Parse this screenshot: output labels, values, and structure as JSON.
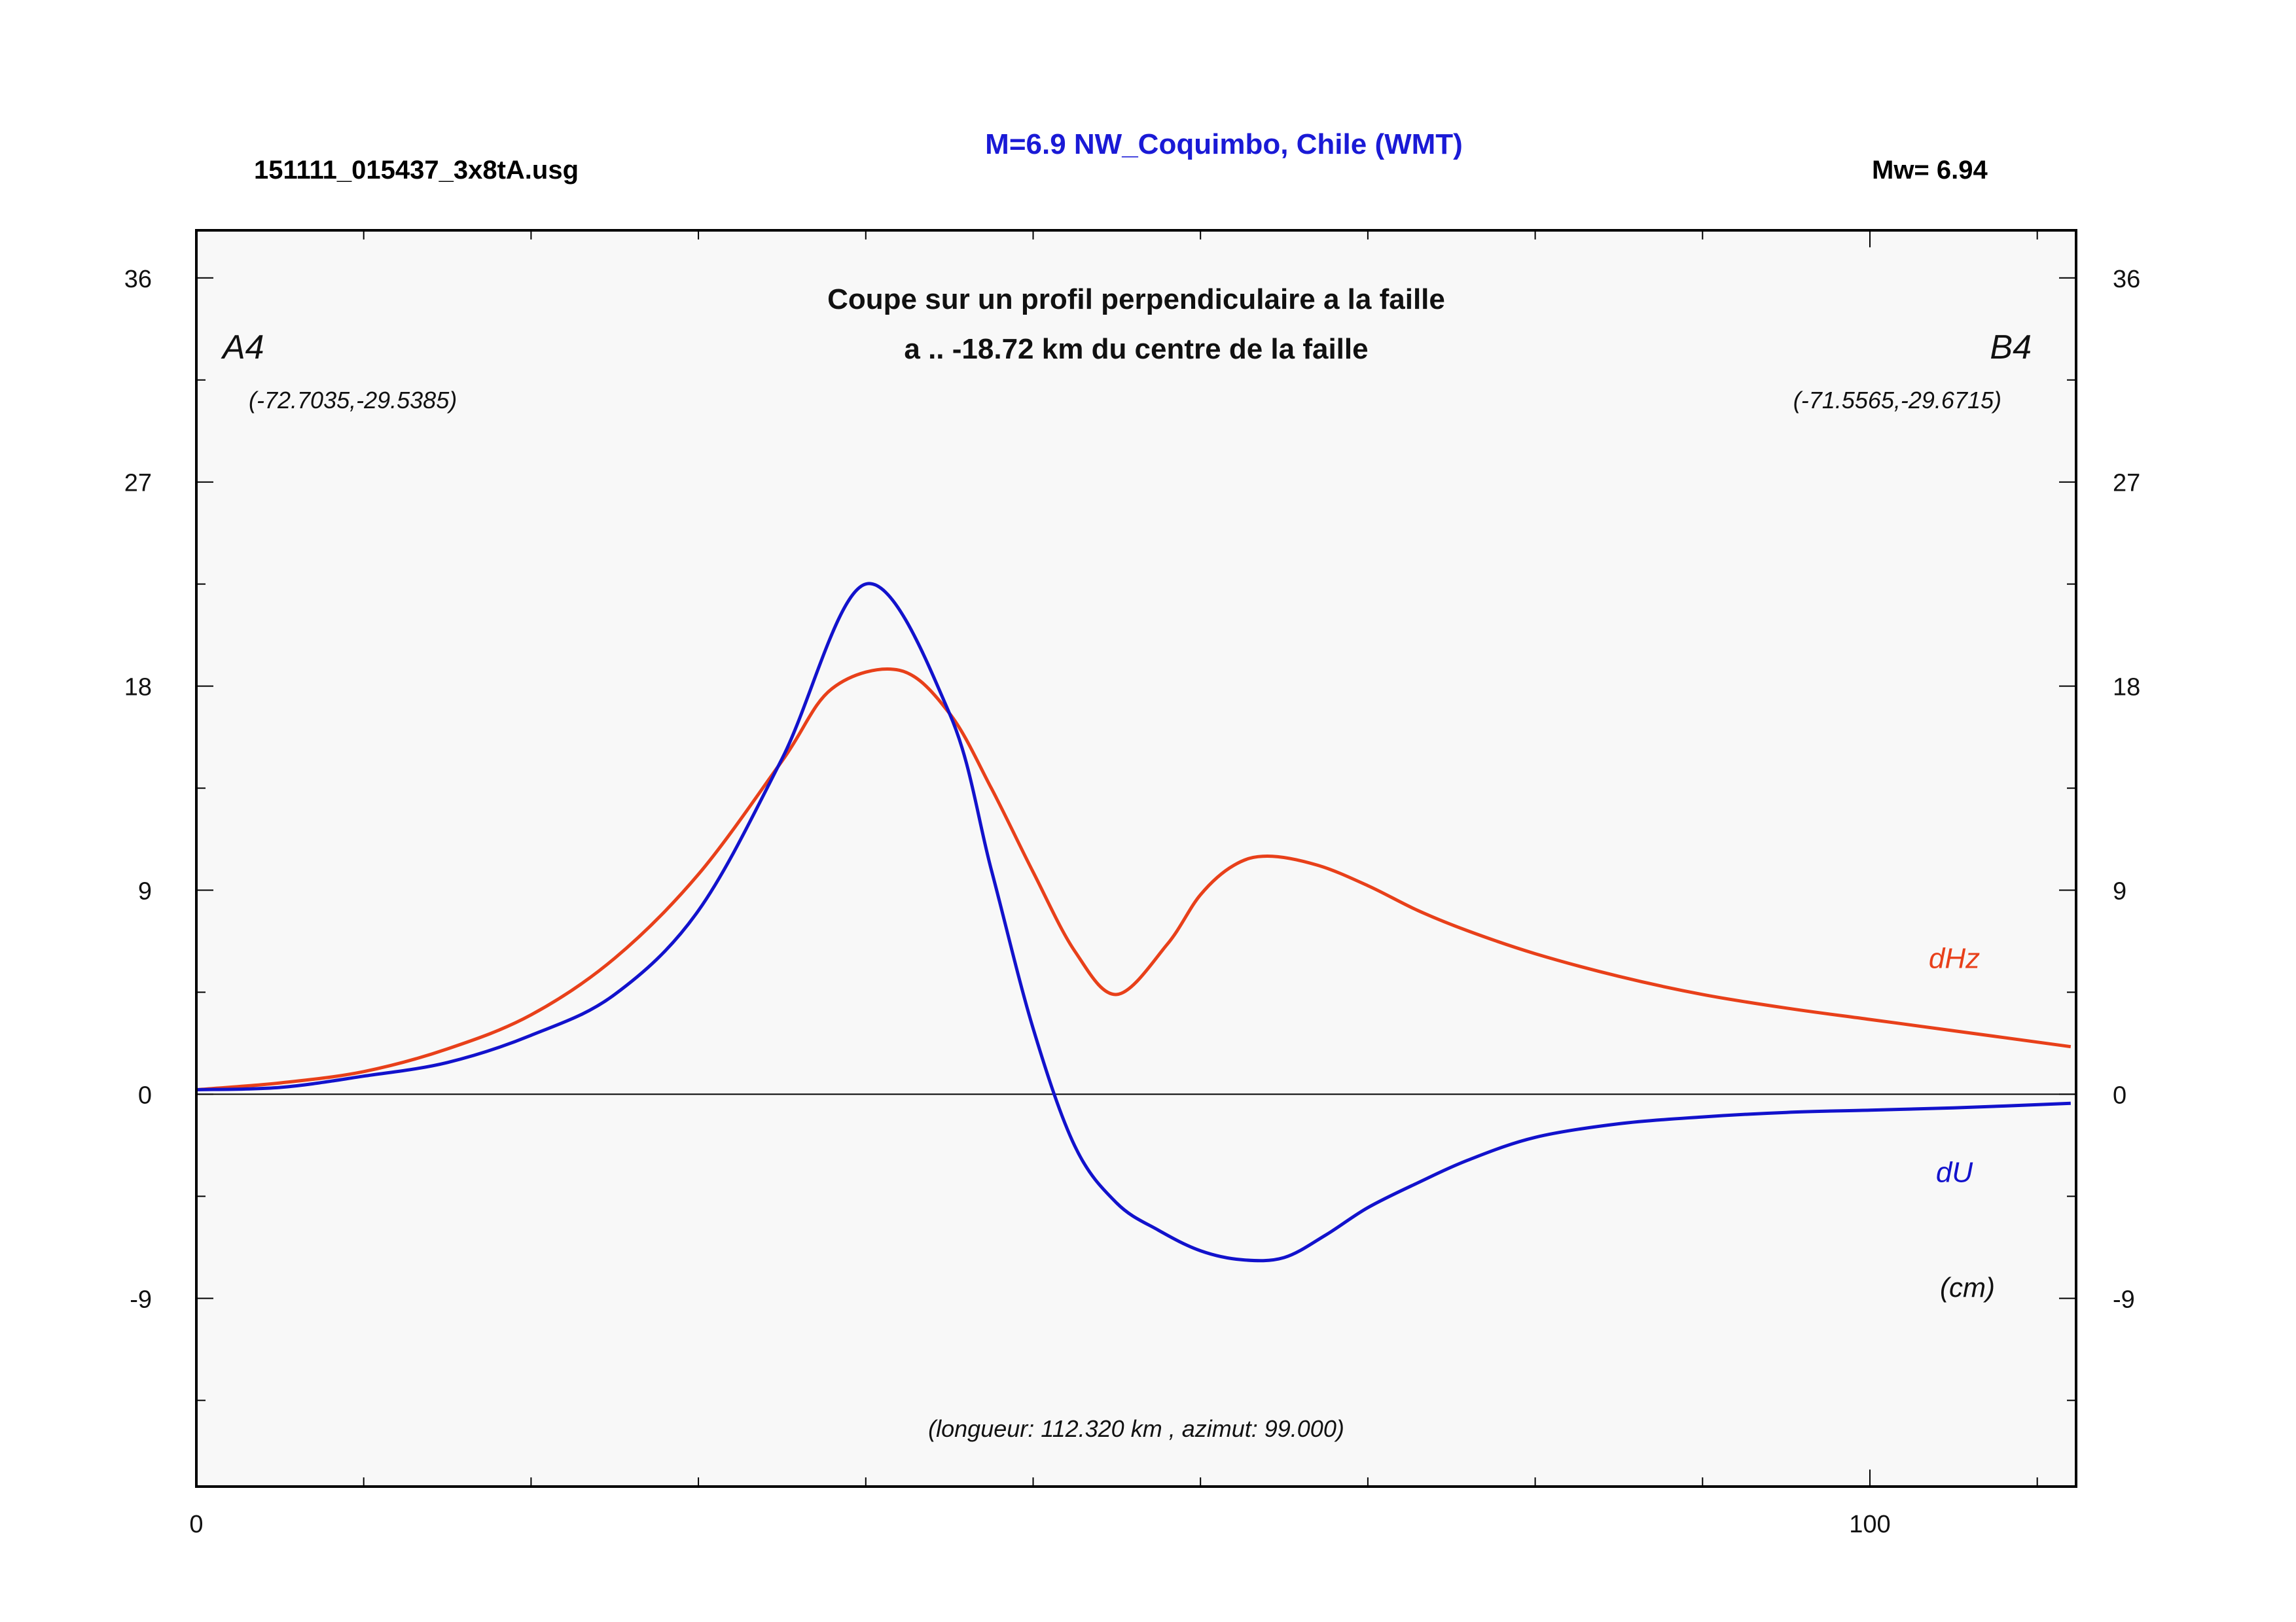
{
  "header": {
    "file": "151111_015437_3x8tA.usg",
    "title": "M=6.9 NW_Coquimbo, Chile (WMT)",
    "magnitude": "Mw= 6.94"
  },
  "plot": {
    "subtitle_line1": "Coupe sur un profil perpendiculaire a la faille",
    "subtitle_line2": "a .. -18.72 km du centre de la faille",
    "point_a": "A4",
    "point_a_coords": "(-72.7035,-29.5385)",
    "point_b": "B4",
    "point_b_coords": "(-71.5565,-29.6715)",
    "length_note": "(longueur: 112.320 km , azimut: 99.000)",
    "unit_note": "(cm)",
    "background": "#f8f8f8"
  },
  "chart_data": {
    "type": "line",
    "xlim": [
      0,
      112.32
    ],
    "ylim": [
      -17.3,
      38.1
    ],
    "x_ticks": [
      0,
      100
    ],
    "x_tick_labels": [
      "0",
      "100"
    ],
    "y_ticks": [
      -9,
      0,
      9,
      18,
      27,
      36
    ],
    "y_tick_labels": [
      "-9",
      "0",
      "9",
      "18",
      "27",
      "36"
    ],
    "grid": false,
    "legend": "inline labels at right",
    "zero_line": true,
    "series": [
      {
        "name": "dHz",
        "color": "#e8401a",
        "x": [
          0,
          5,
          10,
          15,
          20,
          25,
          30,
          35,
          38,
          42,
          45,
          47.5,
          50,
          52.5,
          55,
          58,
          60,
          62,
          64,
          67,
          70,
          73,
          76,
          80,
          85,
          90,
          95,
          100,
          105,
          112
        ],
        "y": [
          0.2,
          0.5,
          1.0,
          2.0,
          3.5,
          6.0,
          9.7,
          14.7,
          17.9,
          18.7,
          16.8,
          13.5,
          9.8,
          6.3,
          4.4,
          6.6,
          8.8,
          10.1,
          10.5,
          10.1,
          9.2,
          8.1,
          7.2,
          6.2,
          5.2,
          4.4,
          3.8,
          3.3,
          2.8,
          2.1
        ]
      },
      {
        "name": "dU",
        "color": "#1212cc",
        "x": [
          0,
          5,
          10,
          15,
          20,
          25,
          30,
          35,
          40,
          45,
          47.5,
          50,
          52.5,
          55,
          57.5,
          60,
          62.5,
          65,
          67.5,
          70,
          73,
          76,
          80,
          85,
          90,
          95,
          100,
          105,
          112
        ],
        "y": [
          0.2,
          0.3,
          0.8,
          1.4,
          2.6,
          4.4,
          8.1,
          14.8,
          22.5,
          16.8,
          9.9,
          2.9,
          -2.3,
          -4.8,
          -6.0,
          -6.9,
          -7.3,
          -7.2,
          -6.2,
          -5.0,
          -3.9,
          -2.9,
          -1.9,
          -1.3,
          -1.0,
          -0.8,
          -0.7,
          -0.6,
          -0.4
        ]
      }
    ]
  }
}
